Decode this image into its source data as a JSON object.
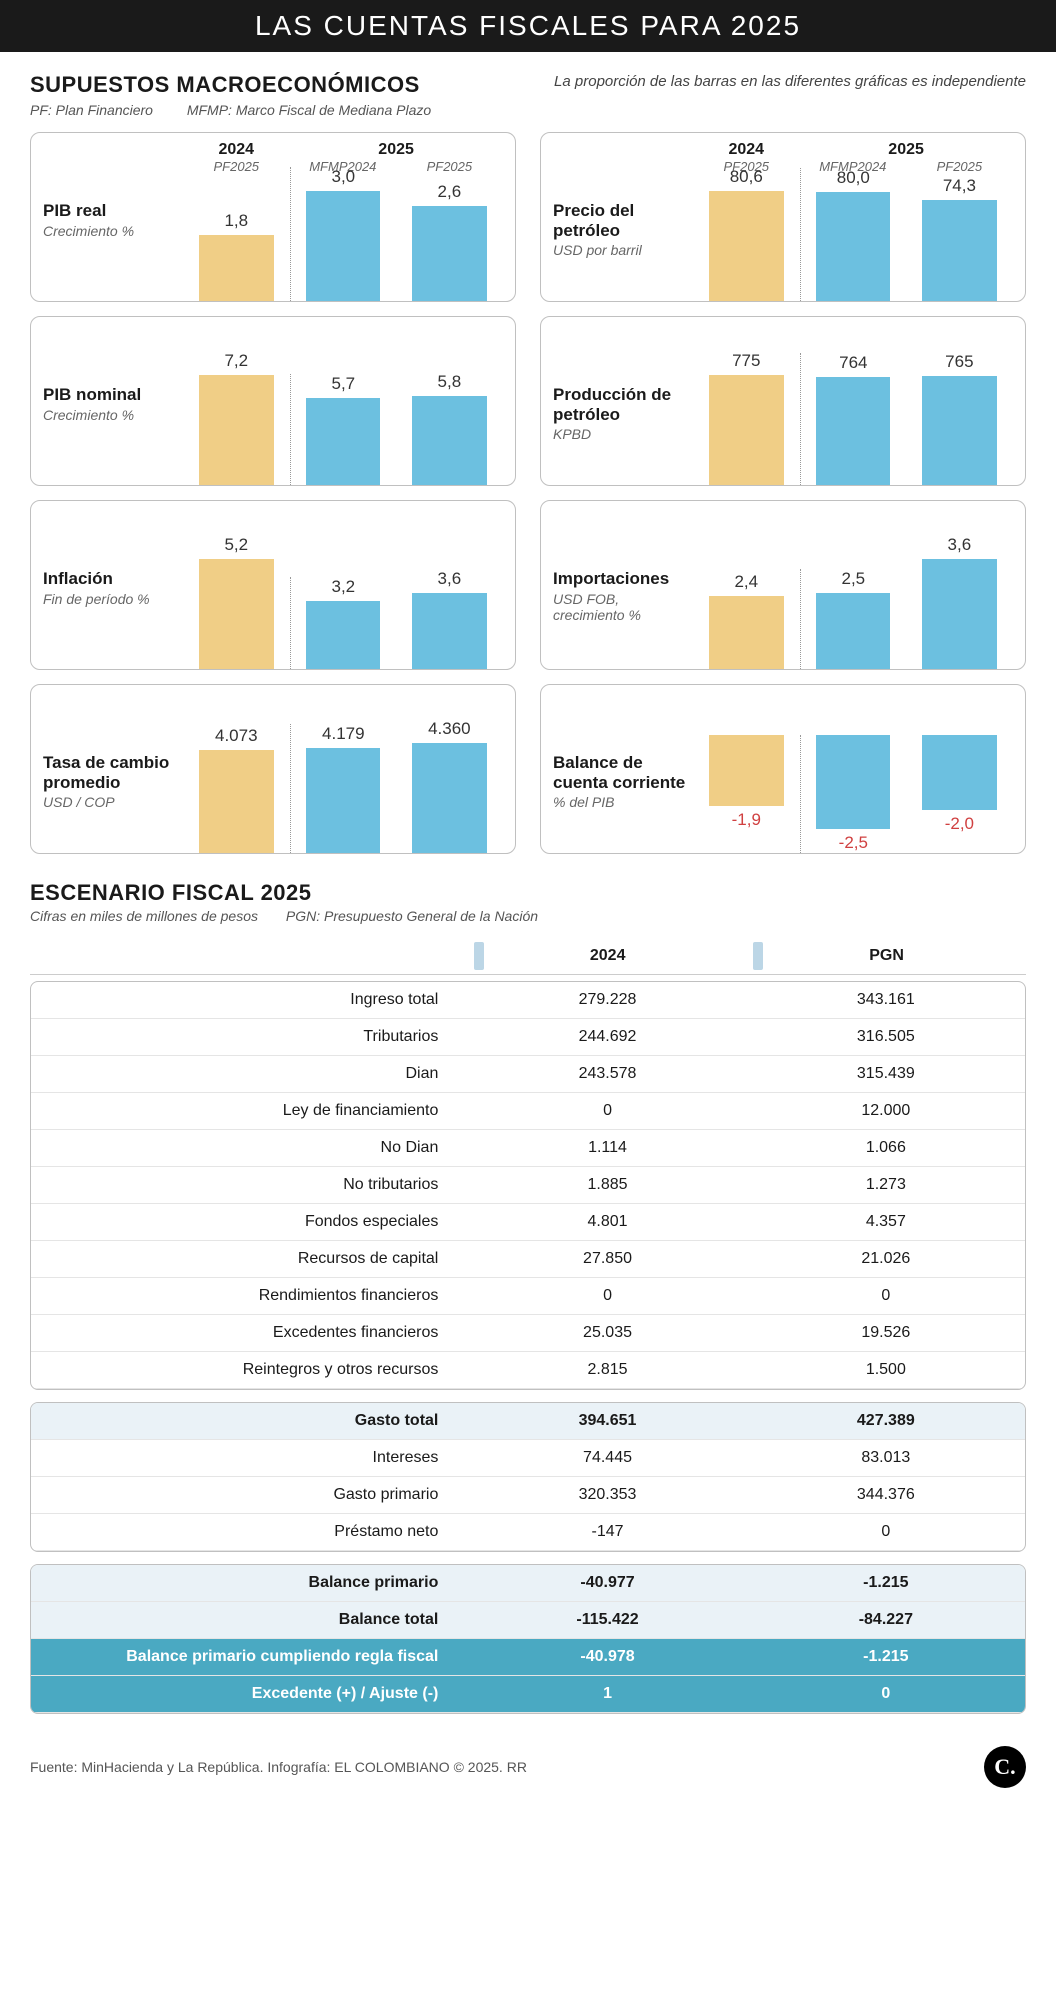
{
  "title": "LAS CUENTAS FISCALES PARA 2025",
  "macro": {
    "title": "SUPUESTOS MACROECONÓMICOS",
    "note": "La proporción de las barras en las diferentes gráficas es independiente",
    "legend_pf": "PF: Plan Financiero",
    "legend_mfmp": "MFMP: Marco Fiscal de Mediana Plazo",
    "col_headers": {
      "y2024": "2024",
      "y2024_sub": "PF2025",
      "y2025": "2025",
      "y2025_sub1": "MFMP2024",
      "y2025_sub2": "PF2025"
    },
    "colors": {
      "bar_2024": "#f0ce86",
      "bar_2025": "#6cc0e0",
      "card_border": "#c0c0c0",
      "neg_text": "#d04040"
    },
    "bar_area_h": 110,
    "cards": [
      {
        "title": "PIB real",
        "sub": "Crecimiento %",
        "max": 3.0,
        "negative": false,
        "v": [
          "1,8",
          "3,0",
          "2,6"
        ],
        "n": [
          1.8,
          3.0,
          2.6
        ]
      },
      {
        "title": "Precio del petróleo",
        "sub": "USD por barril",
        "max": 80.6,
        "negative": false,
        "v": [
          "80,6",
          "80,0",
          "74,3"
        ],
        "n": [
          80.6,
          80.0,
          74.3
        ]
      },
      {
        "title": "PIB nominal",
        "sub": "Crecimiento %",
        "max": 7.2,
        "negative": false,
        "v": [
          "7,2",
          "5,7",
          "5,8"
        ],
        "n": [
          7.2,
          5.7,
          5.8
        ]
      },
      {
        "title": "Producción de petróleo",
        "sub": "KPBD",
        "max": 775,
        "negative": false,
        "v": [
          "775",
          "764",
          "765"
        ],
        "n": [
          775,
          764,
          765
        ]
      },
      {
        "title": "Inflación",
        "sub": "Fin de período %",
        "max": 5.2,
        "negative": false,
        "v": [
          "5,2",
          "3,2",
          "3,6"
        ],
        "n": [
          5.2,
          3.2,
          3.6
        ]
      },
      {
        "title": "Importaciones",
        "sub": "USD FOB, crecimiento %",
        "max": 3.6,
        "negative": false,
        "v": [
          "2,4",
          "2,5",
          "3,6"
        ],
        "n": [
          2.4,
          2.5,
          3.6
        ]
      },
      {
        "title": "Tasa de cambio promedio",
        "sub": "USD / COP",
        "max": 4360,
        "negative": false,
        "v": [
          "4.073",
          "4.179",
          "4.360"
        ],
        "n": [
          4073,
          4179,
          4360
        ]
      },
      {
        "title": "Balance de cuenta corriente",
        "sub": "% del PIB",
        "max": 2.5,
        "negative": true,
        "v": [
          "-1,9",
          "-2,5",
          "-2,0"
        ],
        "n": [
          1.9,
          2.5,
          2.0
        ]
      }
    ]
  },
  "fiscal": {
    "title": "ESCENARIO FISCAL 2025",
    "sub1": "Cifras en miles de millones de pesos",
    "sub2": "PGN: Presupuesto General de la Nación",
    "cols": {
      "c1": "2024",
      "c2": "PGN"
    },
    "block1": [
      {
        "l": "Ingreso total",
        "a": "279.228",
        "b": "343.161"
      },
      {
        "l": "Tributarios",
        "a": "244.692",
        "b": "316.505"
      },
      {
        "l": "Dian",
        "a": "243.578",
        "b": "315.439"
      },
      {
        "l": "Ley de financiamiento",
        "a": "0",
        "b": "12.000"
      },
      {
        "l": "No Dian",
        "a": "1.114",
        "b": "1.066"
      },
      {
        "l": "No tributarios",
        "a": "1.885",
        "b": "1.273"
      },
      {
        "l": "Fondos especiales",
        "a": "4.801",
        "b": "4.357"
      },
      {
        "l": "Recursos de capital",
        "a": "27.850",
        "b": "21.026"
      },
      {
        "l": "Rendimientos financieros",
        "a": "0",
        "b": "0"
      },
      {
        "l": "Excedentes financieros",
        "a": "25.035",
        "b": "19.526"
      },
      {
        "l": "Reintegros y otros recursos",
        "a": "2.815",
        "b": "1.500"
      }
    ],
    "block2_head": {
      "l": "Gasto total",
      "a": "394.651",
      "b": "427.389"
    },
    "block2": [
      {
        "l": "Intereses",
        "a": "74.445",
        "b": "83.013"
      },
      {
        "l": "Gasto primario",
        "a": "320.353",
        "b": "344.376"
      },
      {
        "l": "Préstamo neto",
        "a": "-147",
        "b": "0"
      }
    ],
    "block3": [
      {
        "l": "Balance primario",
        "a": "-40.977",
        "b": "-1.215",
        "style": "band-bold"
      },
      {
        "l": "Balance total",
        "a": "-115.422",
        "b": "-84.227",
        "style": "band-bold"
      },
      {
        "l": "Balance primario cumpliendo regla fiscal",
        "a": "-40.978",
        "b": "-1.215",
        "style": "teal"
      },
      {
        "l": "Excedente (+) / Ajuste (-)",
        "a": "1",
        "b": "0",
        "style": "teal"
      }
    ]
  },
  "footer": {
    "text": "Fuente: MinHacienda y La República. Infografía: EL COLOMBIANO © 2025. RR",
    "logo": "C."
  }
}
